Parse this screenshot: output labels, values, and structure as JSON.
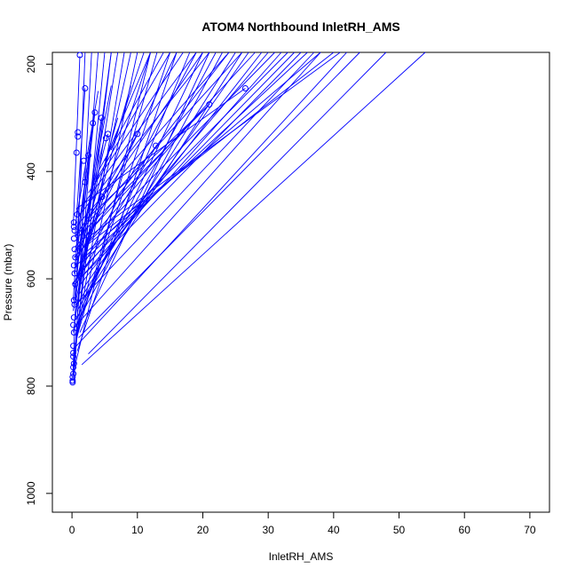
{
  "chart_data": {
    "type": "line",
    "title": "ATOM4 Northbound InletRH_AMS",
    "xlabel": "InletRH_AMS",
    "ylabel": "Pressure (mbar)",
    "xlim": [
      -3,
      73
    ],
    "ylim": [
      1035,
      178
    ],
    "y_reversed": true,
    "grid": false,
    "legend": "none",
    "colors": {
      "series": "#0000ff",
      "axes": "#000000"
    },
    "x_ticks": [
      0,
      10,
      20,
      30,
      40,
      50,
      60,
      70
    ],
    "y_ticks": [
      200,
      400,
      600,
      800,
      1000
    ],
    "lines": [
      [
        [
          0.1,
          790
        ],
        [
          2,
          178
        ]
      ],
      [
        [
          0.2,
          770
        ],
        [
          4,
          178
        ]
      ],
      [
        [
          0.3,
          750
        ],
        [
          6,
          178
        ]
      ],
      [
        [
          0.3,
          740
        ],
        [
          8,
          178
        ]
      ],
      [
        [
          0.4,
          730
        ],
        [
          10,
          178
        ]
      ],
      [
        [
          0.5,
          720
        ],
        [
          13,
          178
        ]
      ],
      [
        [
          0.5,
          705
        ],
        [
          15,
          178
        ]
      ],
      [
        [
          0.6,
          690
        ],
        [
          18,
          178
        ]
      ],
      [
        [
          0.7,
          675
        ],
        [
          20,
          178
        ]
      ],
      [
        [
          0.8,
          660
        ],
        [
          22,
          178
        ]
      ],
      [
        [
          0.9,
          645
        ],
        [
          25,
          178
        ]
      ],
      [
        [
          1.0,
          630
        ],
        [
          27,
          178
        ]
      ],
      [
        [
          1.0,
          615
        ],
        [
          29,
          178
        ]
      ],
      [
        [
          1.2,
          600
        ],
        [
          32,
          178
        ]
      ],
      [
        [
          1.3,
          585
        ],
        [
          34,
          178
        ]
      ],
      [
        [
          1.5,
          570
        ],
        [
          36,
          178
        ]
      ],
      [
        [
          1.7,
          555
        ],
        [
          38,
          178
        ]
      ],
      [
        [
          2,
          540
        ],
        [
          40,
          178
        ]
      ],
      [
        [
          2.2,
          525
        ],
        [
          41,
          178
        ]
      ],
      [
        [
          1.5,
          760
        ],
        [
          54,
          178
        ]
      ],
      [
        [
          2.5,
          740
        ],
        [
          48,
          178
        ]
      ],
      [
        [
          1,
          710
        ],
        [
          44,
          178
        ]
      ],
      [
        [
          0.5,
          650
        ],
        [
          37,
          178
        ]
      ],
      [
        [
          0.4,
          610
        ],
        [
          35,
          178
        ]
      ],
      [
        [
          0.3,
          580
        ],
        [
          33,
          178
        ]
      ],
      [
        [
          0.3,
          560
        ],
        [
          31,
          178
        ]
      ],
      [
        [
          0.5,
          540
        ],
        [
          28,
          178
        ]
      ],
      [
        [
          0.6,
          520
        ],
        [
          26,
          178
        ]
      ],
      [
        [
          0.8,
          500
        ],
        [
          24,
          178
        ]
      ],
      [
        [
          1.2,
          480
        ],
        [
          21,
          178
        ]
      ],
      [
        [
          1.8,
          460
        ],
        [
          19,
          178
        ]
      ],
      [
        [
          2.5,
          440
        ],
        [
          17,
          178
        ]
      ],
      [
        [
          3.5,
          420
        ],
        [
          15,
          178
        ]
      ],
      [
        [
          4,
          400
        ],
        [
          14,
          178
        ]
      ],
      [
        [
          5,
          380
        ],
        [
          12,
          178
        ]
      ],
      [
        [
          6,
          360
        ],
        [
          11,
          178
        ]
      ],
      [
        [
          0.2,
          700
        ],
        [
          6,
          178
        ]
      ],
      [
        [
          0.4,
          680
        ],
        [
          7,
          178
        ]
      ],
      [
        [
          0.6,
          640
        ],
        [
          9,
          178
        ]
      ],
      [
        [
          0.8,
          600
        ],
        [
          12,
          178
        ]
      ],
      [
        [
          1,
          560
        ],
        [
          16,
          178
        ]
      ],
      [
        [
          0.3,
          795
        ],
        [
          3,
          178
        ]
      ],
      [
        [
          0.2,
          780
        ],
        [
          5,
          178
        ]
      ],
      [
        [
          0.5,
          760
        ],
        [
          12,
          178
        ]
      ],
      [
        [
          0.8,
          735
        ],
        [
          16,
          178
        ]
      ],
      [
        [
          1.2,
          700
        ],
        [
          21,
          178
        ]
      ],
      [
        [
          1.5,
          665
        ],
        [
          23,
          178
        ]
      ],
      [
        [
          2,
          635
        ],
        [
          26,
          178
        ]
      ],
      [
        [
          0.3,
          550
        ],
        [
          24,
          178
        ]
      ],
      [
        [
          0.5,
          520
        ],
        [
          20,
          178
        ]
      ],
      [
        [
          0.2,
          610
        ],
        [
          19,
          178
        ]
      ],
      [
        [
          0.6,
          600
        ],
        [
          30,
          178
        ]
      ],
      [
        [
          0.4,
          690
        ],
        [
          38,
          178
        ]
      ],
      [
        [
          0.3,
          730
        ],
        [
          42,
          178
        ]
      ],
      [
        [
          1.1,
          520
        ],
        [
          21,
          275
        ]
      ],
      [
        [
          0.6,
          470
        ],
        [
          26.5,
          245
        ]
      ],
      [
        [
          1.0,
          600
        ],
        [
          13,
          350
        ]
      ],
      [
        [
          2.0,
          500
        ],
        [
          10,
          330
        ]
      ],
      [
        [
          0.4,
          560
        ],
        [
          19.5,
          290
        ]
      ],
      [
        [
          3,
          480
        ],
        [
          21,
          275
        ]
      ],
      [
        [
          0.5,
          640
        ],
        [
          4.5,
          300
        ]
      ],
      [
        [
          0.8,
          580
        ],
        [
          3.5,
          290
        ]
      ],
      [
        [
          1.5,
          520
        ],
        [
          5.5,
          330
        ]
      ],
      [
        [
          0.2,
          500
        ],
        [
          1.2,
          185
        ]
      ],
      [
        [
          0.5,
          520
        ],
        [
          2,
          245
        ]
      ],
      [
        [
          0.9,
          540
        ],
        [
          2.5,
          370
        ]
      ],
      [
        [
          0.3,
          620
        ],
        [
          4.6,
          447
        ]
      ],
      [
        [
          1,
          560
        ],
        [
          6,
          240
        ]
      ],
      [
        [
          0.7,
          600
        ],
        [
          9,
          240
        ]
      ],
      [
        [
          0.2,
          640
        ],
        [
          1.5,
          380
        ]
      ],
      [
        [
          0.4,
          575
        ],
        [
          5,
          335
        ]
      ],
      [
        [
          0.6,
          545
        ],
        [
          3.2,
          310
        ]
      ],
      [
        [
          0.3,
          590
        ],
        [
          7,
          300
        ]
      ],
      [
        [
          0.5,
          500
        ],
        [
          4,
          250
        ]
      ],
      [
        [
          0.2,
          660
        ],
        [
          2.8,
          350
        ]
      ]
    ],
    "points": [
      [
        1.2,
        183
      ],
      [
        2,
        245
      ],
      [
        26.5,
        245
      ],
      [
        21,
        275
      ],
      [
        3.5,
        290
      ],
      [
        4.5,
        300
      ],
      [
        3.2,
        310
      ],
      [
        0.9,
        327
      ],
      [
        10,
        330
      ],
      [
        5.5,
        330
      ],
      [
        5.2,
        338
      ],
      [
        0.9,
        335
      ],
      [
        12.8,
        352
      ],
      [
        0.7,
        365
      ],
      [
        2.5,
        370
      ],
      [
        1.8,
        380
      ],
      [
        2,
        420
      ],
      [
        4.6,
        447
      ],
      [
        0.8,
        480
      ],
      [
        0.3,
        495
      ],
      [
        0.3,
        503
      ],
      [
        0.4,
        510
      ],
      [
        0.3,
        525
      ],
      [
        0.4,
        545
      ],
      [
        0.5,
        560
      ],
      [
        0.3,
        575
      ],
      [
        0.4,
        590
      ],
      [
        0.5,
        610
      ],
      [
        0.3,
        640
      ],
      [
        0.4,
        648
      ],
      [
        0.3,
        672
      ],
      [
        0.2,
        686
      ],
      [
        0.3,
        700
      ],
      [
        0.2,
        725
      ],
      [
        0.2,
        738
      ],
      [
        0.2,
        745
      ],
      [
        0.3,
        758
      ],
      [
        0.2,
        765
      ],
      [
        0.2,
        777
      ],
      [
        0.1,
        783
      ],
      [
        0.1,
        790
      ],
      [
        0.1,
        793
      ]
    ]
  }
}
